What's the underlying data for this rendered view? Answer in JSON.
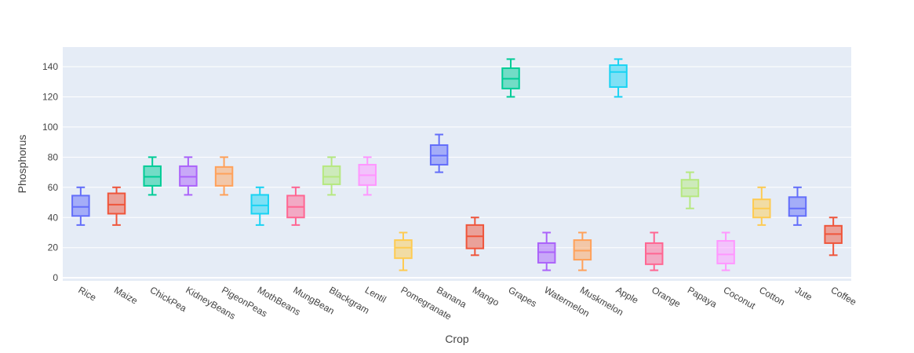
{
  "chart_data": {
    "type": "box",
    "xlabel": "Crop",
    "ylabel": "Phosphorus",
    "ylim": [
      -2,
      153
    ],
    "yticks": [
      0,
      20,
      40,
      60,
      80,
      100,
      120,
      140
    ],
    "grid": true,
    "legend": "none",
    "categories": [
      "Rice",
      "Maize",
      "ChickPea",
      "KidneyBeans",
      "PigeonPeas",
      "MothBeans",
      "MungBean",
      "Blackgram",
      "Lentil",
      "Pomegranate",
      "Banana",
      "Mango",
      "Grapes",
      "Watermelon",
      "Muskmelon",
      "Apple",
      "Orange",
      "Papaya",
      "Coconut",
      "Cotton",
      "Jute",
      "Coffee"
    ],
    "colors": [
      "#636efa",
      "#ef553b",
      "#00cc96",
      "#ab63fa",
      "#ffa15a",
      "#19d3f3",
      "#ff6692",
      "#b6e880",
      "#ff97ff",
      "#fecb52",
      "#636efa",
      "#ef553b",
      "#00cc96",
      "#ab63fa",
      "#ffa15a",
      "#19d3f3",
      "#ff6692",
      "#b6e880",
      "#ff97ff",
      "#fecb52",
      "#636efa",
      "#ef553b"
    ],
    "boxes": [
      {
        "min": 35,
        "q1": 41,
        "median": 47,
        "q3": 54.5,
        "max": 60
      },
      {
        "min": 35,
        "q1": 42.5,
        "median": 48.5,
        "q3": 56,
        "max": 60
      },
      {
        "min": 55,
        "q1": 61,
        "median": 67,
        "q3": 74,
        "max": 80
      },
      {
        "min": 55,
        "q1": 61,
        "median": 67,
        "q3": 74,
        "max": 80
      },
      {
        "min": 55,
        "q1": 61,
        "median": 69,
        "q3": 73.5,
        "max": 80
      },
      {
        "min": 35,
        "q1": 42.5,
        "median": 48,
        "q3": 55,
        "max": 60
      },
      {
        "min": 35,
        "q1": 40,
        "median": 47,
        "q3": 54.5,
        "max": 60
      },
      {
        "min": 55,
        "q1": 62,
        "median": 67,
        "q3": 74,
        "max": 80
      },
      {
        "min": 55,
        "q1": 61.5,
        "median": 68,
        "q3": 75,
        "max": 80
      },
      {
        "min": 5,
        "q1": 13,
        "median": 20,
        "q3": 25,
        "max": 30
      },
      {
        "min": 70,
        "q1": 75,
        "median": 81,
        "q3": 88,
        "max": 95
      },
      {
        "min": 15,
        "q1": 19.5,
        "median": 27.5,
        "q3": 35,
        "max": 40
      },
      {
        "min": 120,
        "q1": 125.5,
        "median": 132,
        "q3": 139,
        "max": 145
      },
      {
        "min": 5,
        "q1": 10,
        "median": 17,
        "q3": 23,
        "max": 30
      },
      {
        "min": 5,
        "q1": 12,
        "median": 18,
        "q3": 25,
        "max": 30
      },
      {
        "min": 120,
        "q1": 126.5,
        "median": 136.5,
        "q3": 141,
        "max": 145
      },
      {
        "min": 5,
        "q1": 9,
        "median": 16,
        "q3": 23,
        "max": 30
      },
      {
        "min": 46,
        "q1": 54,
        "median": 59.5,
        "q3": 65,
        "max": 70
      },
      {
        "min": 5,
        "q1": 9.5,
        "median": 15.5,
        "q3": 24.5,
        "max": 30
      },
      {
        "min": 35,
        "q1": 40,
        "median": 46,
        "q3": 52,
        "max": 60
      },
      {
        "min": 35,
        "q1": 41,
        "median": 46,
        "q3": 53.5,
        "max": 60
      },
      {
        "min": 15,
        "q1": 23,
        "median": 29,
        "q3": 34.5,
        "max": 40
      }
    ]
  }
}
